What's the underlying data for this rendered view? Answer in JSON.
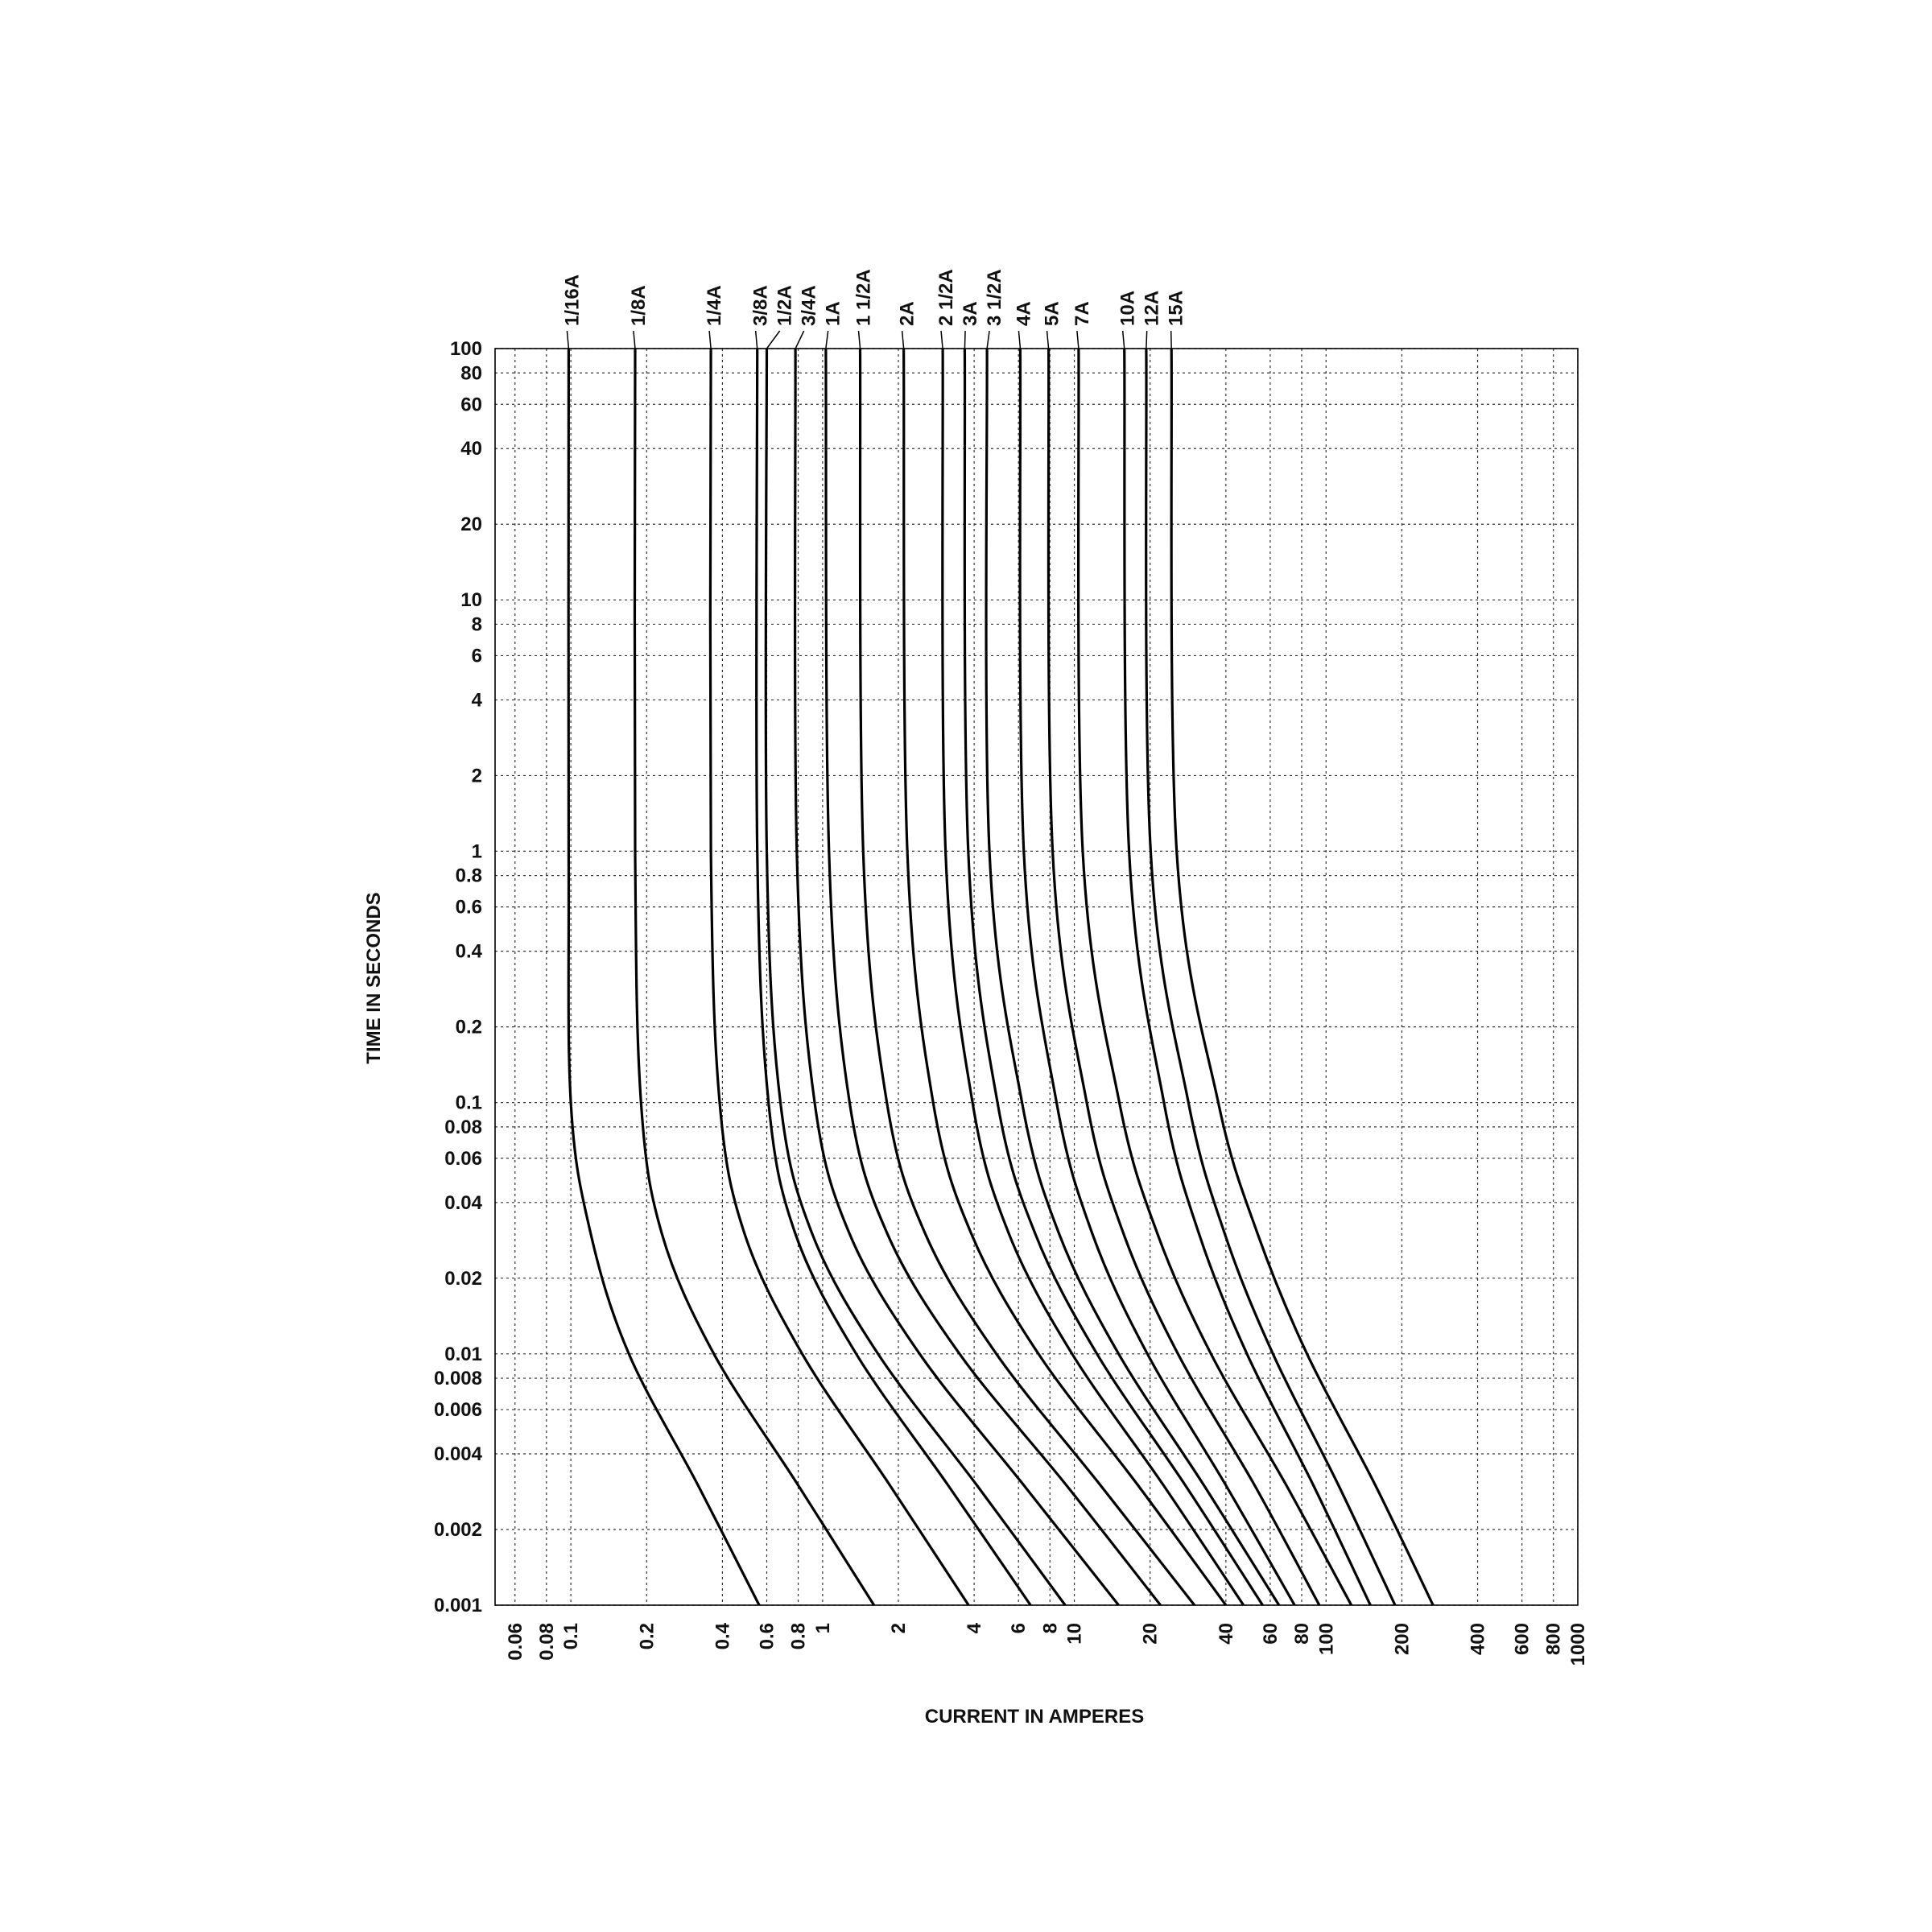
{
  "chart_data": {
    "type": "line",
    "y_label": "TIME IN SECONDS",
    "x_label": "CURRENT IN AMPERES",
    "log_x": true,
    "log_y": true,
    "grid": true,
    "color": "#000000",
    "xlim": [
      0.05,
      1000
    ],
    "ylim": [
      0.001,
      100
    ],
    "xticks": [
      0.06,
      0.08,
      0.1,
      0.2,
      0.4,
      0.6,
      0.8,
      1,
      2,
      4,
      6,
      8,
      10,
      20,
      40,
      60,
      80,
      100,
      200,
      400,
      600,
      800,
      1000
    ],
    "yticks": [
      100,
      80,
      60,
      40,
      20,
      10,
      8,
      6,
      4,
      2,
      1,
      0.8,
      0.6,
      0.4,
      0.2,
      0.1,
      0.08,
      0.06,
      0.04,
      0.02,
      0.01,
      0.008,
      0.006,
      0.004,
      0.002,
      0.001
    ],
    "series": [
      {
        "name": "1/16A",
        "x": [
          0.098,
          0.098,
          0.1,
          0.12,
          0.17,
          0.32,
          0.56
        ],
        "values": [
          100,
          1,
          0.1,
          0.03,
          0.01,
          0.003,
          0.001
        ]
      },
      {
        "name": "1/8A",
        "x": [
          0.18,
          0.18,
          0.19,
          0.23,
          0.37,
          0.8,
          1.6
        ],
        "values": [
          100,
          1,
          0.1,
          0.03,
          0.01,
          0.003,
          0.001
        ]
      },
      {
        "name": "1/4A",
        "x": [
          0.36,
          0.36,
          0.39,
          0.49,
          0.83,
          1.85,
          3.8
        ],
        "values": [
          100,
          1,
          0.1,
          0.03,
          0.01,
          0.003,
          0.001
        ]
      },
      {
        "name": "3/8A",
        "x": [
          0.55,
          0.55,
          0.61,
          0.78,
          1.36,
          3.15,
          6.7
        ],
        "values": [
          100,
          1,
          0.1,
          0.03,
          0.01,
          0.003,
          0.001
        ]
      },
      {
        "name": "1/2A",
        "x": [
          0.6,
          0.6,
          0.68,
          0.91,
          1.66,
          4.1,
          9.2
        ],
        "values": [
          100,
          1,
          0.1,
          0.03,
          0.01,
          0.003,
          0.001
        ]
      },
      {
        "name": "3/4A",
        "x": [
          0.78,
          0.79,
          0.93,
          1.28,
          2.43,
          6.3,
          15
        ],
        "values": [
          100,
          1,
          0.1,
          0.03,
          0.01,
          0.003,
          0.001
        ]
      },
      {
        "name": "1A",
        "x": [
          1.03,
          1.06,
          1.28,
          1.81,
          3.5,
          9.3,
          22
        ],
        "values": [
          100,
          1,
          0.1,
          0.03,
          0.01,
          0.003,
          0.001
        ]
      },
      {
        "name": "1 1/2A",
        "x": [
          1.41,
          1.45,
          1.8,
          2.56,
          4.9,
          12.7,
          30
        ],
        "values": [
          100,
          1,
          0.1,
          0.03,
          0.01,
          0.003,
          0.001
        ]
      },
      {
        "name": "2A",
        "x": [
          2.1,
          2.17,
          2.75,
          3.9,
          7.2,
          17.9,
          40
        ],
        "values": [
          100,
          1,
          0.1,
          0.03,
          0.01,
          0.003,
          0.001
        ]
      },
      {
        "name": "2 1/2A",
        "x": [
          3.0,
          3.08,
          3.94,
          5.5,
          9.8,
          22.6,
          47
        ],
        "values": [
          100,
          1,
          0.1,
          0.03,
          0.01,
          0.003,
          0.001
        ]
      },
      {
        "name": "3A",
        "x": [
          3.67,
          3.79,
          4.95,
          7.0,
          12.3,
          27.6,
          56
        ],
        "values": [
          100,
          1,
          0.1,
          0.03,
          0.01,
          0.003,
          0.001
        ]
      },
      {
        "name": "3 1/2A",
        "x": [
          4.5,
          4.6,
          6.2,
          8.7,
          15,
          32.7,
          65
        ],
        "values": [
          100,
          1,
          0.1,
          0.03,
          0.01,
          0.003,
          0.001
        ]
      },
      {
        "name": "4A",
        "x": [
          6.1,
          6.3,
          8.5,
          11.8,
          19.5,
          40,
          75
        ],
        "values": [
          100,
          1,
          0.1,
          0.03,
          0.01,
          0.003,
          0.001
        ]
      },
      {
        "name": "5A",
        "x": [
          7.9,
          8.2,
          11.2,
          15.7,
          25.8,
          52,
          94
        ],
        "values": [
          100,
          1,
          0.1,
          0.03,
          0.01,
          0.003,
          0.001
        ]
      },
      {
        "name": "7A",
        "x": [
          10.4,
          10.8,
          15.1,
          21.4,
          34.9,
          69.5,
          126
        ],
        "values": [
          100,
          1,
          0.1,
          0.03,
          0.01,
          0.003,
          0.001
        ]
      },
      {
        "name": "10A",
        "x": [
          15.8,
          16.5,
          22.7,
          31.3,
          48.5,
          89,
          150
        ],
        "values": [
          100,
          1,
          0.1,
          0.03,
          0.01,
          0.003,
          0.001
        ]
      },
      {
        "name": "12A",
        "x": [
          19.3,
          20.1,
          28.4,
          39.6,
          61.5,
          112,
          188
        ],
        "values": [
          100,
          1,
          0.1,
          0.03,
          0.01,
          0.003,
          0.001
        ]
      },
      {
        "name": "15A",
        "x": [
          24.3,
          25.5,
          37.3,
          53.5,
          84,
          157,
          266
        ],
        "values": [
          100,
          1,
          0.1,
          0.03,
          0.01,
          0.003,
          0.001
        ]
      }
    ]
  }
}
